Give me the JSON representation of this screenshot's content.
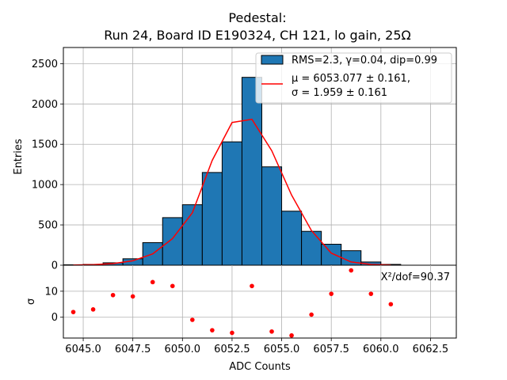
{
  "chart_data": [
    {
      "type": "bar",
      "title": "Pedestal:",
      "subtitle": "Run 24, Board ID E190324, CH 121, lo gain, 25Ω",
      "xlabel": "",
      "ylabel": "Entries",
      "xlim": [
        6044.0,
        6063.8
      ],
      "ylim": [
        0,
        2700
      ],
      "yticks": [
        "0",
        "500",
        "1000",
        "1500",
        "2000",
        "2500"
      ],
      "grid": true,
      "legend_position": "top-right",
      "histogram": {
        "name": "RMS=2.3, γ=0.04, dip=0.99",
        "color": "#1f77b4",
        "bin_edges": [
          6044,
          6045,
          6046,
          6047,
          6048,
          6049,
          6050,
          6051,
          6052,
          6053,
          6054,
          6055,
          6056,
          6057,
          6058,
          6059,
          6060,
          6061
        ],
        "counts": [
          5,
          10,
          30,
          80,
          280,
          590,
          750,
          1150,
          1530,
          2330,
          1220,
          670,
          420,
          260,
          180,
          40,
          10
        ]
      },
      "fit": {
        "line1": "μ = 6053.077 ± 0.161,",
        "line2": "σ = 1.959 ± 0.161",
        "color": "#ff0000",
        "x": [
          6044.5,
          6045.5,
          6046.5,
          6047.5,
          6048.5,
          6049.5,
          6050.5,
          6051.5,
          6052.5,
          6053.5,
          6054.5,
          6055.5,
          6056.5,
          6057.5,
          6058.5,
          6059.5,
          6060.5
        ],
        "y": [
          3,
          7,
          20,
          55,
          140,
          330,
          650,
          1300,
          1770,
          1810,
          1420,
          870,
          430,
          150,
          40,
          10,
          2
        ]
      }
    },
    {
      "type": "scatter",
      "xlabel": "ADC Counts",
      "ylabel": "σ",
      "xlim": [
        6044.0,
        6063.8
      ],
      "ylim": [
        -8,
        20
      ],
      "xticks": [
        "6045.0",
        "6047.5",
        "6050.0",
        "6052.5",
        "6055.0",
        "6057.5",
        "6060.0",
        "6062.5"
      ],
      "yticks": [
        "0",
        "10"
      ],
      "grid": true,
      "annotation": "Χ²/dof=90.37",
      "series": [
        {
          "color": "#ff0000",
          "x": [
            6044.5,
            6045.5,
            6046.5,
            6047.5,
            6048.5,
            6049.5,
            6050.5,
            6051.5,
            6052.5,
            6053.5,
            6054.5,
            6055.5,
            6056.5,
            6057.5,
            6058.5,
            6059.5,
            6060.5
          ],
          "y": [
            2,
            3,
            8.5,
            8,
            13.5,
            12,
            -1,
            -5,
            -6,
            12,
            -5.5,
            -7,
            1,
            9,
            18,
            9,
            5
          ]
        }
      ]
    }
  ]
}
